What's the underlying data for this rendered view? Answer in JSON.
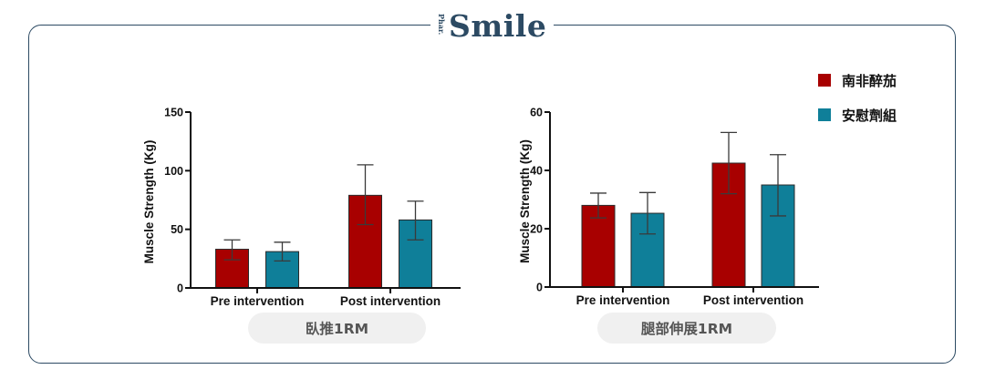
{
  "brand": {
    "prefix": "Phar.",
    "name": "Smile"
  },
  "legend": [
    {
      "label": "南非醉茄",
      "color": "#a80000"
    },
    {
      "label": "安慰劑組",
      "color": "#0f7f99"
    }
  ],
  "chart_data": [
    {
      "type": "bar",
      "title": "臥推1RM",
      "xlabel": "",
      "ylabel": "Muscle Strength (Kg)",
      "ylim": [
        0,
        150
      ],
      "yticks": [
        0,
        50,
        100,
        150
      ],
      "grid": false,
      "legend_position": "top-right",
      "categories": [
        "Pre intervention",
        "Post intervention"
      ],
      "series": [
        {
          "name": "南非醉茄",
          "color": "#a80000",
          "values": [
            33,
            79
          ],
          "error_low": [
            24,
            54
          ],
          "error_high": [
            41,
            105
          ]
        },
        {
          "name": "安慰劑組",
          "color": "#0f7f99",
          "values": [
            31,
            58
          ],
          "error_low": [
            23,
            41
          ],
          "error_high": [
            39,
            74
          ]
        }
      ]
    },
    {
      "type": "bar",
      "title": "腿部伸展1RM",
      "xlabel": "",
      "ylabel": "Muscle Strength (Kg)",
      "ylim": [
        0,
        60
      ],
      "yticks": [
        0,
        20,
        40,
        60
      ],
      "grid": false,
      "legend_position": "top-right",
      "categories": [
        "Pre intervention",
        "Post intervention"
      ],
      "series": [
        {
          "name": "南非醉茄",
          "color": "#a80000",
          "values": [
            28,
            42.5
          ],
          "error_low": [
            23.7,
            32
          ],
          "error_high": [
            32.2,
            53
          ]
        },
        {
          "name": "安慰劑組",
          "color": "#0f7f99",
          "values": [
            25.3,
            35
          ],
          "error_low": [
            18.2,
            24.4
          ],
          "error_high": [
            32.4,
            45.4
          ]
        }
      ]
    }
  ]
}
